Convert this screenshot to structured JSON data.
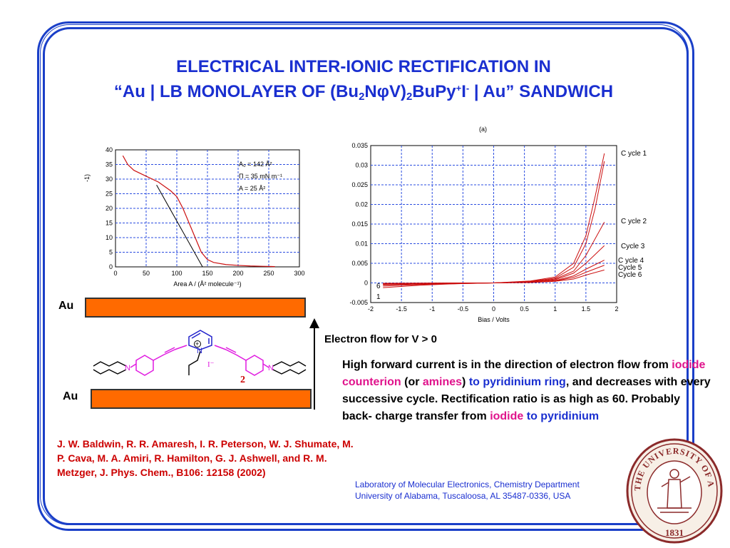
{
  "title": {
    "line1": "ELECTRICAL INTER-IONIC RECTIFICATION IN",
    "line2_a": "“Au | LB MONOLAYER OF (Bu",
    "line2_sub1": "2",
    "line2_b": "N",
    "line2_phi": "φ",
    "line2_c": "V)",
    "line2_sub2": "2",
    "line2_d": "BuPy",
    "line2_sup1": "+",
    "line2_e": "I",
    "line2_sup2": "-",
    "line2_f": "  | Au” SANDWICH"
  },
  "isotherm": {
    "xlabel": "Area A / (Å² molecule⁻¹)",
    "ylabel_fragment": "-1)",
    "annotations": [
      "A₀ = 142 Å²",
      "Π = 35 mN m⁻¹",
      "A = 25 Å²"
    ]
  },
  "chart_data": [
    {
      "type": "line",
      "description": "Pressure-area isotherm",
      "xlabel": "Area A / (Å² molecule⁻¹)",
      "ylabel": "",
      "xlim": [
        0,
        300
      ],
      "ylim": [
        0,
        40
      ],
      "xticks": [
        "0",
        "50",
        "100",
        "150",
        "200",
        "250",
        "300"
      ],
      "yticks": [
        "0",
        "5",
        "10",
        "15",
        "20",
        "25",
        "30",
        "35",
        "40"
      ],
      "grid": true,
      "series": [
        {
          "x": [
            12,
            20,
            30,
            50,
            70,
            90,
            100,
            110,
            120,
            130,
            140,
            150,
            160,
            180,
            200,
            220,
            240,
            260
          ],
          "y": [
            38,
            35,
            33,
            31,
            29,
            26,
            24,
            20,
            15,
            10,
            5,
            2.5,
            1.5,
            0.8,
            0.5,
            0.3,
            0.2,
            0.1
          ]
        },
        {
          "x": [
            67,
            142
          ],
          "y": [
            28,
            0
          ]
        }
      ]
    },
    {
      "type": "line",
      "label": "(a)",
      "xlabel": "Bias / Volts",
      "ylabel": "",
      "xlim": [
        -2,
        2
      ],
      "ylim": [
        -0.005,
        0.035
      ],
      "xticks": [
        "-2",
        "-1.5",
        "-1",
        "-0.5",
        "0",
        "0.5",
        "1",
        "1.5",
        "2"
      ],
      "yticks": [
        "-0.005",
        "0",
        "0.005",
        "0.01",
        "0.015",
        "0.02",
        "0.025",
        "0.03",
        "0.035"
      ],
      "grid": true,
      "curve_labels": [
        "C ycle 1",
        "C ycle 2",
        "Cycle 3",
        "C ycle 4",
        "Cycle 5",
        "Cycle 6",
        "6",
        "1"
      ],
      "series": [
        {
          "name": "C ycle 1",
          "x": [
            -1.8,
            -1.2,
            -0.6,
            0,
            0.6,
            1.0,
            1.3,
            1.5,
            1.65,
            1.8
          ],
          "y": [
            -0.0008,
            -0.0004,
            -0.0002,
            0,
            0.0005,
            0.0015,
            0.005,
            0.012,
            0.022,
            0.033
          ]
        },
        {
          "name": "C ycle 1",
          "x": [
            -1.8,
            -1.2,
            -0.6,
            0,
            0.6,
            1.0,
            1.3,
            1.5,
            1.65,
            1.8
          ],
          "y": [
            -0.0012,
            -0.0006,
            -0.0002,
            0,
            0.0004,
            0.0012,
            0.004,
            0.01,
            0.019,
            0.031
          ]
        },
        {
          "name": "C ycle 2",
          "x": [
            -1.8,
            -1.2,
            -0.6,
            0,
            0.6,
            1.0,
            1.3,
            1.5,
            1.8
          ],
          "y": [
            -0.0005,
            -0.0003,
            -0.0001,
            0,
            0.0003,
            0.001,
            0.003,
            0.007,
            0.0155
          ]
        },
        {
          "name": "Cycle 3",
          "x": [
            -1.8,
            -1.2,
            -0.6,
            0,
            0.6,
            1.0,
            1.3,
            1.5,
            1.8
          ],
          "y": [
            -0.0004,
            -0.0002,
            -0.0001,
            0,
            0.0002,
            0.0008,
            0.0025,
            0.005,
            0.0095
          ]
        },
        {
          "name": "C ycle 4",
          "x": [
            -1.8,
            -1.2,
            -0.6,
            0,
            0.6,
            1.0,
            1.3,
            1.5,
            1.8
          ],
          "y": [
            -0.0003,
            -0.0002,
            -0.0001,
            0,
            0.0002,
            0.0006,
            0.0018,
            0.0035,
            0.0058
          ]
        },
        {
          "name": "Cycle 5",
          "x": [
            -1.8,
            -1.2,
            -0.6,
            0,
            0.6,
            1.0,
            1.3,
            1.5,
            1.8
          ],
          "y": [
            -0.0002,
            -0.0001,
            -5e-05,
            0,
            0.0002,
            0.0005,
            0.0014,
            0.0027,
            0.0045
          ]
        },
        {
          "name": "Cycle 6",
          "x": [
            -1.8,
            -1.2,
            -0.6,
            0,
            0.6,
            1.0,
            1.3,
            1.5,
            1.8
          ],
          "y": [
            -0.0001,
            -5e-05,
            0,
            0,
            0.0001,
            0.0004,
            0.001,
            0.002,
            0.0033
          ]
        }
      ]
    }
  ],
  "electrodes": {
    "top_label": "Au",
    "bottom_label": "Au"
  },
  "molecule": {
    "compound_number": "2",
    "counterion": "I⁻",
    "nitrogen": "N",
    "nitrogen_plus": "N",
    "plus": "+"
  },
  "flow_label": "Electron flow for V > 0",
  "description": {
    "p1": "High forward current  is in the direction  of electron flow from ",
    "p2": "iodide counterion",
    "p3": " (or ",
    "p4": "amines",
    "p5": ")  ",
    "p6": "to pyridinium ring",
    "p7": ", and decreases  with every successive cycle. Rectification ratio is as high as 60.  Probably back- charge transfer from ",
    "p8": "iodide",
    "p9": " ",
    "p10": "to pyridinium"
  },
  "reference": "J. W. Baldwin, R. R. Amaresh, I. R. Peterson, W. J. Shumate, M. P. Cava, M. A. Amiri, R. Hamilton, G. J. Ashwell, and R. M. Metzger, J. Phys. Chem., B106: 12158 (2002)",
  "lab": {
    "line1": "Laboratory of Molecular Electronics, Chemistry Department",
    "line2": "University of Alabama, Tuscaloosa, AL 35487-0336, USA"
  },
  "seal": {
    "text": "THE UNIVERSITY OF ALABAMA",
    "year": "1831"
  },
  "colors": {
    "frame": "#1a3fc8",
    "title": "#1a2fd0",
    "curve": "#cc1111",
    "gold": "#ff6a00",
    "seal": "#8b2a2a",
    "molecule": "#e01ae0",
    "pyridinium": "#2222cc"
  }
}
